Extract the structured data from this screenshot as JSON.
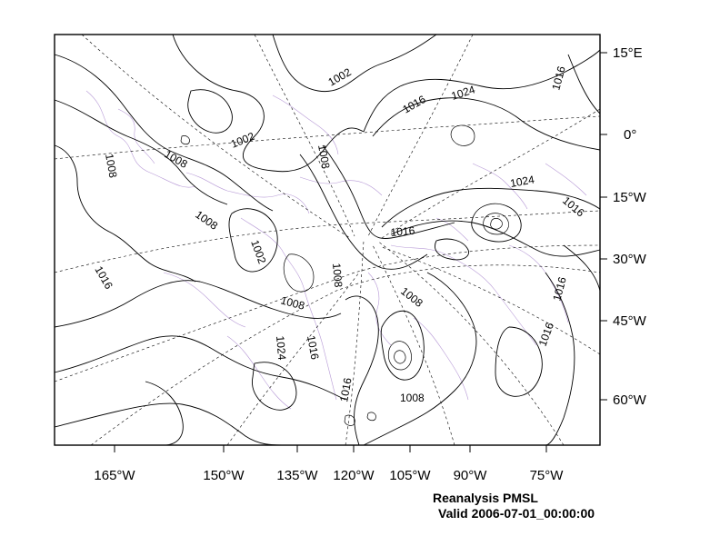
{
  "map": {
    "caption_title": "Reanalysis PMSL",
    "caption_valid": "Valid 2006-07-01_00:00:00",
    "right_axis_labels": [
      "15°E",
      "0°",
      "15°W",
      "30°W",
      "45°W",
      "60°W"
    ],
    "bottom_axis_labels": [
      "165°W",
      "150°W",
      "135°W",
      "120°W",
      "105°W",
      "90°W",
      "75°W"
    ],
    "contour_labels": [
      "1002",
      "1016",
      "1024",
      "1016",
      "1002",
      "1008",
      "1008",
      "1008",
      "1024",
      "1016",
      "1008",
      "1016",
      "1002",
      "1008",
      "1016",
      "1008",
      "1008",
      "1016",
      "1016",
      "1016",
      "1024",
      "1016",
      "1016",
      "1008"
    ],
    "colors": {
      "coastline": "#b79ad6",
      "contour": "#000000",
      "graticule": "#000000"
    }
  }
}
